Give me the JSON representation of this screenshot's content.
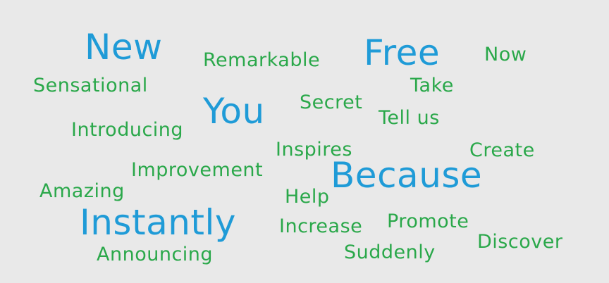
{
  "colors": {
    "background": "#e9e9e9",
    "primary_words": "#1f9bd7",
    "secondary_words": "#2aa84a"
  },
  "words": {
    "new": "New",
    "remarkable": "Remarkable",
    "free": "Free",
    "now": "Now",
    "sensational": "Sensational",
    "take": "Take",
    "you": "You",
    "secret": "Secret",
    "tell_us": "Tell us",
    "introducing": "Introducing",
    "inspires": "Inspires",
    "create": "Create",
    "improvement": "Improvement",
    "because": "Because",
    "amazing": "Amazing",
    "help": "Help",
    "instantly": "Instantly",
    "promote": "Promote",
    "increase": "Increase",
    "discover": "Discover",
    "suddenly": "Suddenly",
    "announcing": "Announcing"
  }
}
